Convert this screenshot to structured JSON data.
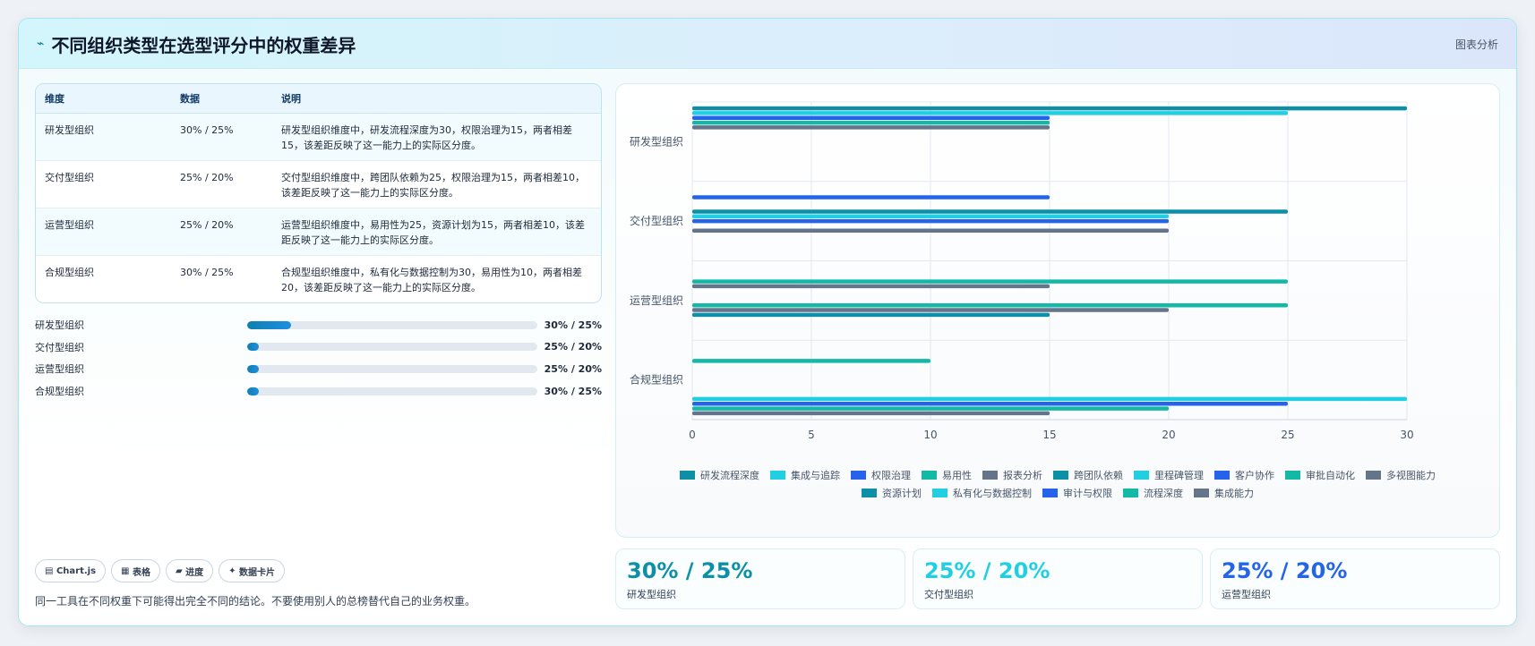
{
  "header": {
    "icon": "lightning-icon",
    "title": "不同组织类型在选型评分中的权重差异",
    "action": "图表分析"
  },
  "table": {
    "columns": [
      "维度",
      "数据",
      "说明"
    ],
    "rows": [
      {
        "name": "研发型组织",
        "data": "30% / 25%",
        "desc": "研发型组织维度中，研发流程深度为30，权限治理为15，两者相差15，该差距反映了这一能力上的实际区分度。"
      },
      {
        "name": "交付型组织",
        "data": "25% / 20%",
        "desc": "交付型组织维度中，跨团队依赖为25，权限治理为15，两者相差10，该差距反映了这一能力上的实际区分度。"
      },
      {
        "name": "运营型组织",
        "data": "25% / 20%",
        "desc": "运营型组织维度中，易用性为25，资源计划为15，两者相差10，该差距反映了这一能力上的实际区分度。"
      },
      {
        "name": "合规型组织",
        "data": "30% / 25%",
        "desc": "合规型组织维度中，私有化与数据控制为30，易用性为10，两者相差20，该差距反映了这一能力上的实际区分度。"
      }
    ]
  },
  "progress": [
    {
      "label": "研发型组织",
      "value": "30% / 25%",
      "fill": 0.15
    },
    {
      "label": "交付型组织",
      "value": "25% / 20%",
      "fill": 0.04
    },
    {
      "label": "运营型组织",
      "value": "25% / 20%",
      "fill": 0.04
    },
    {
      "label": "合规型组织",
      "value": "30% / 25%",
      "fill": 0.04
    }
  ],
  "tags": [
    {
      "icon": "chart-icon",
      "glyph": "▤",
      "label": "Chart.js"
    },
    {
      "icon": "table-icon",
      "glyph": "▦",
      "label": "表格"
    },
    {
      "icon": "progress-icon",
      "glyph": "▰",
      "label": "进度"
    },
    {
      "icon": "sparkle-icon",
      "glyph": "✦",
      "label": "数据卡片"
    }
  ],
  "footnote": "同一工具在不同权重下可能得出完全不同的结论。不要使用别人的总榜替代自己的业务权重。",
  "kpis": [
    {
      "value": "30% / 25%",
      "label": "研发型组织",
      "color": "#0e8fa8"
    },
    {
      "value": "25% / 20%",
      "label": "交付型组织",
      "color": "#22cfe0"
    },
    {
      "value": "25% / 20%",
      "label": "运营型组织",
      "color": "#2563eb"
    }
  ],
  "chart_data": {
    "type": "bar",
    "orientation": "horizontal",
    "categories": [
      "研发型组织",
      "交付型组织",
      "运营型组织",
      "合规型组织"
    ],
    "xlim": [
      0,
      30
    ],
    "xticks": [
      0,
      5,
      10,
      15,
      20,
      25,
      30
    ],
    "grid": true,
    "legend_position": "bottom",
    "series": [
      {
        "name": "研发流程深度",
        "color": "#0e8fa8",
        "values": [
          30,
          null,
          null,
          null
        ]
      },
      {
        "name": "集成与追踪",
        "color": "#22cfe0",
        "values": [
          25,
          null,
          null,
          null
        ]
      },
      {
        "name": "权限治理",
        "color": "#2563eb",
        "values": [
          15,
          15,
          null,
          null
        ]
      },
      {
        "name": "易用性",
        "color": "#14b8a6",
        "values": [
          15,
          null,
          25,
          10
        ]
      },
      {
        "name": "报表分析",
        "color": "#64748b",
        "values": [
          15,
          null,
          15,
          null
        ]
      },
      {
        "name": "跨团队依赖",
        "color": "#0e8fa8",
        "values": [
          null,
          25,
          null,
          null
        ]
      },
      {
        "name": "里程碑管理",
        "color": "#22cfe0",
        "values": [
          null,
          20,
          null,
          null
        ]
      },
      {
        "name": "客户协作",
        "color": "#2563eb",
        "values": [
          null,
          20,
          null,
          null
        ]
      },
      {
        "name": "审批自动化",
        "color": "#14b8a6",
        "values": [
          null,
          null,
          25,
          null
        ]
      },
      {
        "name": "多视图能力",
        "color": "#64748b",
        "values": [
          null,
          20,
          20,
          null
        ]
      },
      {
        "name": "资源计划",
        "color": "#0e8fa8",
        "values": [
          null,
          null,
          15,
          null
        ]
      },
      {
        "name": "私有化与数据控制",
        "color": "#22cfe0",
        "values": [
          null,
          null,
          null,
          30
        ]
      },
      {
        "name": "审计与权限",
        "color": "#2563eb",
        "values": [
          null,
          null,
          null,
          25
        ]
      },
      {
        "name": "流程深度",
        "color": "#14b8a6",
        "values": [
          null,
          null,
          null,
          20
        ]
      },
      {
        "name": "集成能力",
        "color": "#64748b",
        "values": [
          null,
          null,
          null,
          15
        ]
      }
    ]
  }
}
